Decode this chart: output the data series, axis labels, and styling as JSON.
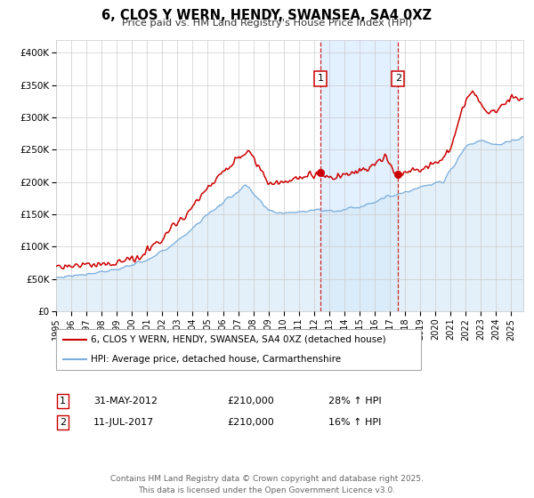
{
  "title": "6, CLOS Y WERN, HENDY, SWANSEA, SA4 0XZ",
  "subtitle": "Price paid vs. HM Land Registry's House Price Index (HPI)",
  "legend_line1": "6, CLOS Y WERN, HENDY, SWANSEA, SA4 0XZ (detached house)",
  "legend_line2": "HPI: Average price, detached house, Carmarthenshire",
  "red_color": "#cc0000",
  "blue_color": "#7aaddc",
  "blue_fill_color": "#d8eaf7",
  "shaded_region_color": "#ddeeff",
  "grid_color": "#cccccc",
  "background_color": "#ffffff",
  "ylim": [
    0,
    420000
  ],
  "xlim_start": 1995.0,
  "xlim_end": 2025.8,
  "yticks": [
    0,
    50000,
    100000,
    150000,
    200000,
    250000,
    300000,
    350000,
    400000
  ],
  "ytick_labels": [
    "£0",
    "£50K",
    "£100K",
    "£150K",
    "£200K",
    "£250K",
    "£300K",
    "£350K",
    "£400K"
  ],
  "xticks": [
    1995,
    1996,
    1997,
    1998,
    1999,
    2000,
    2001,
    2002,
    2003,
    2004,
    2005,
    2006,
    2007,
    2008,
    2009,
    2010,
    2011,
    2012,
    2013,
    2014,
    2015,
    2016,
    2017,
    2018,
    2019,
    2020,
    2021,
    2022,
    2023,
    2024,
    2025
  ],
  "event1_x": 2012.42,
  "event2_x": 2017.54,
  "event1_label": "1",
  "event2_label": "2",
  "table_row1": [
    "1",
    "31-MAY-2012",
    "£210,000",
    "28% ↑ HPI"
  ],
  "table_row2": [
    "2",
    "11-JUL-2017",
    "£210,000",
    "16% ↑ HPI"
  ],
  "footer": "Contains HM Land Registry data © Crown copyright and database right 2025.\nThis data is licensed under the Open Government Licence v3.0."
}
